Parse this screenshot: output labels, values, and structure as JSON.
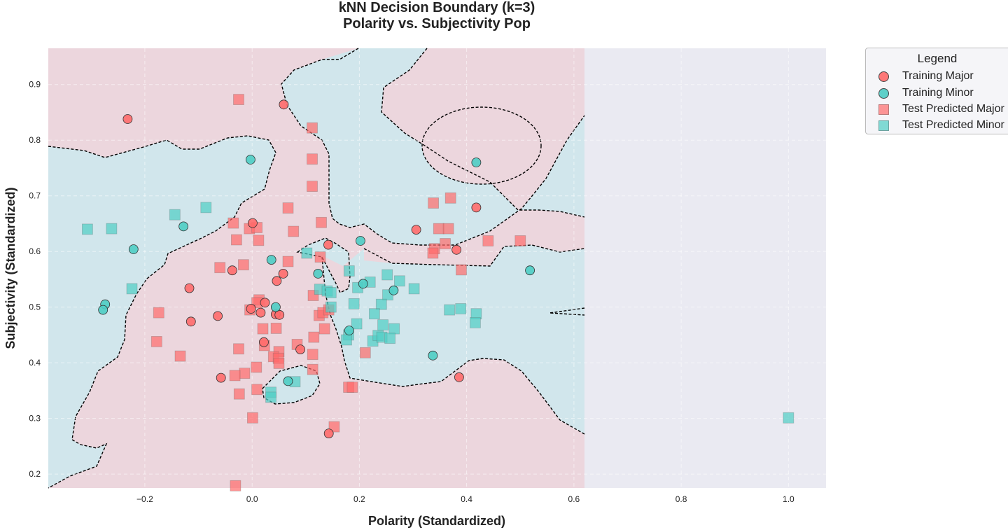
{
  "chart_data": {
    "type": "scatter",
    "title": "kNN Decision Boundary (k=3)",
    "subtitle": "Polarity vs. Subjectivity Pop",
    "xlabel": "Polarity (Standardized)",
    "ylabel": "Subjectivity (Standardized)",
    "xlim": [
      -0.38,
      1.07
    ],
    "ylim": [
      0.175,
      0.965
    ],
    "xticks": [
      -0.2,
      0.0,
      0.2,
      0.4,
      0.6,
      0.8,
      1.0
    ],
    "xtick_labels": [
      "−0.2",
      "0.0",
      "0.2",
      "0.4",
      "0.6",
      "0.8",
      "1.0"
    ],
    "yticks": [
      0.2,
      0.3,
      0.4,
      0.5,
      0.6,
      0.7,
      0.8,
      0.9
    ],
    "ytick_labels": [
      "0.2",
      "0.3",
      "0.4",
      "0.5",
      "0.6",
      "0.7",
      "0.8",
      "0.9"
    ],
    "grid": true,
    "legend_title": "Legend",
    "legend_position": "outside top-right",
    "colors": {
      "major": "#ff6b6b",
      "minor": "#4ecdc4",
      "region_major": "#ecd6dd",
      "region_minor": "#d1e6ec",
      "plot_background": "#eaeaf2",
      "boundary": "#000000"
    },
    "series": [
      {
        "name": "Training Major",
        "marker": "circle",
        "color": "#ff6b6b",
        "points": [
          [
            -0.232,
            0.838
          ],
          [
            0.059,
            0.864
          ],
          [
            0.418,
            0.679
          ],
          [
            0.306,
            0.639
          ],
          [
            0.381,
            0.603
          ],
          [
            0.142,
            0.612
          ],
          [
            0.001,
            0.651
          ],
          [
            0.058,
            0.56
          ],
          [
            0.046,
            0.547
          ],
          [
            -0.037,
            0.566
          ],
          [
            -0.117,
            0.534
          ],
          [
            -0.064,
            0.484
          ],
          [
            -0.114,
            0.474
          ],
          [
            0.024,
            0.508
          ],
          [
            0.016,
            0.49
          ],
          [
            -0.002,
            0.497
          ],
          [
            0.044,
            0.487
          ],
          [
            0.051,
            0.486
          ],
          [
            0.022,
            0.437
          ],
          [
            0.09,
            0.424
          ],
          [
            -0.058,
            0.373
          ],
          [
            0.386,
            0.374
          ],
          [
            0.143,
            0.273
          ]
        ]
      },
      {
        "name": "Training Minor",
        "marker": "circle",
        "color": "#4ecdc4",
        "points": [
          [
            -0.003,
            0.765
          ],
          [
            0.418,
            0.76
          ],
          [
            -0.128,
            0.645
          ],
          [
            -0.221,
            0.604
          ],
          [
            0.202,
            0.619
          ],
          [
            0.036,
            0.585
          ],
          [
            0.518,
            0.566
          ],
          [
            0.123,
            0.56
          ],
          [
            0.207,
            0.542
          ],
          [
            0.264,
            0.53
          ],
          [
            -0.274,
            0.505
          ],
          [
            -0.278,
            0.495
          ],
          [
            0.044,
            0.5
          ],
          [
            0.181,
            0.458
          ],
          [
            0.337,
            0.413
          ],
          [
            0.067,
            0.367
          ]
        ]
      },
      {
        "name": "Test Predicted Major",
        "marker": "square",
        "color": "#ff6b6b",
        "points": [
          [
            -0.025,
            0.873
          ],
          [
            0.112,
            0.822
          ],
          [
            0.112,
            0.766
          ],
          [
            0.112,
            0.717
          ],
          [
            0.067,
            0.678
          ],
          [
            0.077,
            0.636
          ],
          [
            0.129,
            0.652
          ],
          [
            -0.035,
            0.651
          ],
          [
            -0.029,
            0.621
          ],
          [
            0.012,
            0.62
          ],
          [
            -0.005,
            0.641
          ],
          [
            0.009,
            0.643
          ],
          [
            0.338,
            0.687
          ],
          [
            0.37,
            0.696
          ],
          [
            0.348,
            0.641
          ],
          [
            0.366,
            0.641
          ],
          [
            0.34,
            0.605
          ],
          [
            0.337,
            0.597
          ],
          [
            0.36,
            0.614
          ],
          [
            0.44,
            0.619
          ],
          [
            0.5,
            0.619
          ],
          [
            0.39,
            0.567
          ],
          [
            -0.06,
            0.571
          ],
          [
            -0.016,
            0.576
          ],
          [
            0.067,
            0.582
          ],
          [
            0.127,
            0.59
          ],
          [
            0.114,
            0.521
          ],
          [
            0.125,
            0.485
          ],
          [
            0.132,
            0.49
          ],
          [
            0.143,
            0.495
          ],
          [
            0.135,
            0.461
          ],
          [
            0.013,
            0.513
          ],
          [
            0.009,
            0.508
          ],
          [
            -0.004,
            0.495
          ],
          [
            -0.174,
            0.49
          ],
          [
            0.02,
            0.461
          ],
          [
            0.045,
            0.462
          ],
          [
            -0.178,
            0.438
          ],
          [
            0.115,
            0.446
          ],
          [
            0.023,
            0.431
          ],
          [
            -0.025,
            0.425
          ],
          [
            0.05,
            0.42
          ],
          [
            0.084,
            0.433
          ],
          [
            0.04,
            0.411
          ],
          [
            0.049,
            0.408
          ],
          [
            0.05,
            0.399
          ],
          [
            0.113,
            0.415
          ],
          [
            0.211,
            0.418
          ],
          [
            0.113,
            0.388
          ],
          [
            0.008,
            0.392
          ],
          [
            -0.014,
            0.381
          ],
          [
            -0.032,
            0.377
          ],
          [
            -0.134,
            0.412
          ],
          [
            0.009,
            0.352
          ],
          [
            -0.024,
            0.344
          ],
          [
            0.18,
            0.356
          ],
          [
            0.187,
            0.356
          ],
          [
            0.001,
            0.301
          ],
          [
            0.153,
            0.285
          ],
          [
            -0.031,
            0.179
          ]
        ]
      },
      {
        "name": "Test Predicted Minor",
        "marker": "square",
        "color": "#4ecdc4",
        "points": [
          [
            -0.307,
            0.64
          ],
          [
            -0.262,
            0.641
          ],
          [
            -0.144,
            0.666
          ],
          [
            -0.086,
            0.679
          ],
          [
            -0.224,
            0.533
          ],
          [
            0.102,
            0.597
          ],
          [
            0.181,
            0.565
          ],
          [
            0.252,
            0.558
          ],
          [
            0.126,
            0.532
          ],
          [
            0.14,
            0.529
          ],
          [
            0.197,
            0.535
          ],
          [
            0.22,
            0.545
          ],
          [
            0.275,
            0.547
          ],
          [
            0.302,
            0.533
          ],
          [
            0.253,
            0.522
          ],
          [
            0.147,
            0.526
          ],
          [
            0.147,
            0.5
          ],
          [
            0.241,
            0.505
          ],
          [
            0.19,
            0.506
          ],
          [
            0.228,
            0.488
          ],
          [
            0.195,
            0.47
          ],
          [
            0.244,
            0.468
          ],
          [
            0.265,
            0.461
          ],
          [
            0.368,
            0.495
          ],
          [
            0.389,
            0.497
          ],
          [
            0.418,
            0.488
          ],
          [
            0.416,
            0.472
          ],
          [
            0.18,
            0.45
          ],
          [
            0.176,
            0.441
          ],
          [
            0.225,
            0.439
          ],
          [
            0.235,
            0.449
          ],
          [
            0.242,
            0.446
          ],
          [
            0.257,
            0.444
          ],
          [
            0.035,
            0.347
          ],
          [
            0.035,
            0.338
          ],
          [
            0.08,
            0.366
          ],
          [
            1.0,
            0.301
          ]
        ]
      }
    ]
  }
}
